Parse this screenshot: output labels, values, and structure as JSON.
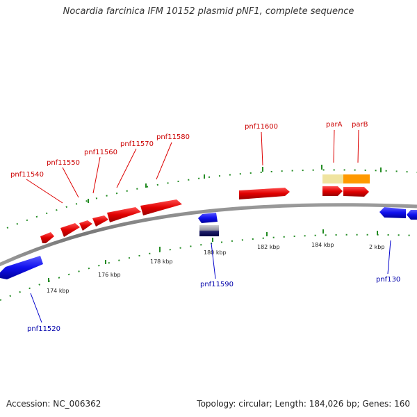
{
  "title": "Nocardia farcinica IFM 10152 plasmid pNF1, complete sequence",
  "footer": {
    "accession": "Accession: NC_006362",
    "summary": "Topology: circular; Length: 184,026 bp; Genes: 160"
  },
  "colors": {
    "forward_gene": "#e60000",
    "reverse_gene": "#1a1aff",
    "forward_label": "#cc0000",
    "reverse_label": "#0000aa",
    "backbone": "#8a8a8a",
    "tick": "#228b22",
    "parA": "#f0e4a0",
    "parB": "#ff9900"
  },
  "tick_labels": [
    "174 kbp",
    "176 kbp",
    "178 kbp",
    "180 kbp",
    "182 kbp",
    "184 kbp",
    "2 kbp"
  ],
  "forward_gene_labels": [
    "pnf11540",
    "pnf11550",
    "pnf11560",
    "pnf11570",
    "pnf11580",
    "pnf11600",
    "parA",
    "parB"
  ],
  "reverse_gene_labels": [
    "pnf11520",
    "pnf11590",
    "pnf130"
  ]
}
